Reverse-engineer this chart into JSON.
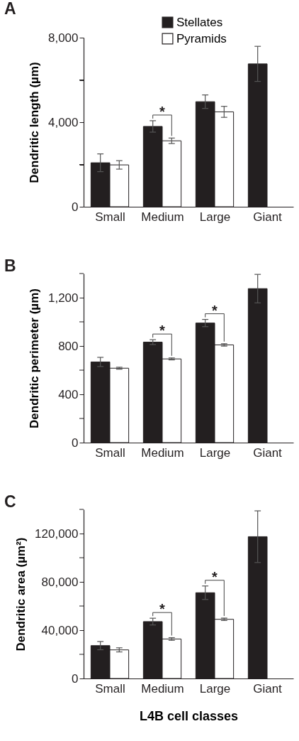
{
  "chart_data": [
    {
      "type": "bar",
      "title": "A",
      "ylabel": "Dendritic length (µm)",
      "categories": [
        "Small",
        "Medium",
        "Large",
        "Giant"
      ],
      "series": [
        {
          "name": "Stellates",
          "color": "#231f20",
          "values": [
            2080,
            3800,
            4970,
            6760
          ],
          "errors": [
            420,
            270,
            320,
            830
          ]
        },
        {
          "name": "Pyramids",
          "color": "#ffffff",
          "values": [
            1980,
            3120,
            4490,
            null
          ],
          "errors": [
            200,
            130,
            260,
            null
          ]
        }
      ],
      "ylim": [
        0,
        8000
      ],
      "yticks": [
        0,
        {
          "value": 2000,
          "label": null
        },
        {
          "value": 4000,
          "label": "4,000"
        },
        {
          "value": 6000,
          "label": null
        },
        {
          "value": 8000,
          "label": "8,000"
        }
      ],
      "legend": "top",
      "grid": false,
      "annotations": [
        {
          "text": "*",
          "x": "Medium",
          "y": 3800
        }
      ]
    },
    {
      "type": "bar",
      "title": "B",
      "ylabel": "Dendritic perimeter (µm)",
      "categories": [
        "Small",
        "Medium",
        "Large",
        "Giant"
      ],
      "series": [
        {
          "color": "#231f20",
          "values": [
            668,
            832,
            990,
            1275
          ],
          "errors": [
            38,
            20,
            30,
            118
          ]
        },
        {
          "color": "#ffffff",
          "values": [
            616,
            693,
            809,
            null
          ],
          "errors": [
            8,
            8,
            10,
            null
          ]
        }
      ],
      "ylim": [
        0,
        1400
      ],
      "yticks": [
        0,
        {
          "value": 200,
          "label": null
        },
        400,
        {
          "value": 600,
          "label": null
        },
        800,
        {
          "value": 1000,
          "label": null
        },
        {
          "value": 1200,
          "label": "1,200"
        },
        {
          "value": 1400,
          "label": null
        }
      ],
      "grid": false,
      "annotations": [
        {
          "text": "*",
          "x": "Medium",
          "y": 832
        },
        {
          "text": "*",
          "x": "Large",
          "y": 990
        }
      ]
    },
    {
      "type": "bar",
      "title": "C",
      "ylabel": "Dendritic area (µm²)",
      "xlabel": "L4B cell classes",
      "categories": [
        "Small",
        "Medium",
        "Large",
        "Giant"
      ],
      "series": [
        {
          "color": "#231f20",
          "values": [
            27200,
            47100,
            71000,
            117400
          ],
          "errors": [
            3400,
            2800,
            5600,
            21400
          ]
        },
        {
          "color": "#ffffff",
          "values": [
            23700,
            32700,
            49000,
            null
          ],
          "errors": [
            1700,
            1100,
            1000,
            null
          ]
        }
      ],
      "ylim": [
        0,
        140000
      ],
      "yticks": [
        0,
        {
          "value": 20000,
          "label": null
        },
        {
          "value": 40000,
          "label": "40,000"
        },
        {
          "value": 60000,
          "label": null
        },
        {
          "value": 80000,
          "label": "80,000"
        },
        {
          "value": 100000,
          "label": null
        },
        {
          "value": 120000,
          "label": "120,000"
        },
        {
          "value": 140000,
          "label": null
        }
      ],
      "grid": false,
      "annotations": [
        {
          "text": "*",
          "x": "Medium",
          "y": 47100
        },
        {
          "text": "*",
          "x": "Large",
          "y": 71000
        }
      ]
    }
  ]
}
